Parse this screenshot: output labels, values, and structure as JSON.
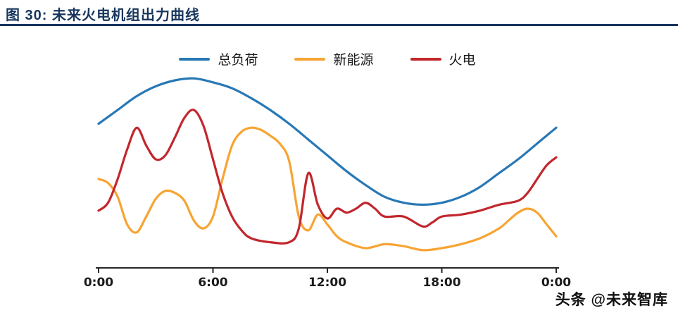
{
  "page": {
    "title": "图 30:  未来火电机组出力曲线",
    "footer": "头条 @未来智库",
    "title_color": "#17365d",
    "axis_color": "#262626"
  },
  "chart_data": {
    "type": "line",
    "title": "未来火电机组出力曲线",
    "xlabel": "",
    "ylabel": "",
    "x_range": [
      0,
      24
    ],
    "ylim": [
      0,
      100
    ],
    "grid": false,
    "legend_position": "top-center",
    "x_ticks": [
      {
        "pos": 0,
        "label": "0:00"
      },
      {
        "pos": 6,
        "label": "6:00"
      },
      {
        "pos": 12,
        "label": "12:00"
      },
      {
        "pos": 18,
        "label": "18:00"
      },
      {
        "pos": 24,
        "label": "0:00"
      }
    ],
    "series": [
      {
        "name": "总负荷",
        "color": "#2878b5",
        "x": [
          0,
          1,
          2,
          3,
          4,
          5,
          6,
          7,
          8,
          9,
          10,
          11,
          12,
          13,
          14,
          15,
          16,
          17,
          18,
          19,
          20,
          21,
          22,
          23,
          24
        ],
        "values": [
          73,
          80,
          87,
          92,
          95,
          96,
          94,
          91,
          86,
          80,
          73,
          65,
          57,
          49,
          42,
          36,
          33,
          32,
          33,
          36,
          41,
          48,
          55,
          63,
          71
        ]
      },
      {
        "name": "新能源",
        "color": "#f7a433",
        "x": [
          0,
          0.5,
          1,
          1.5,
          2,
          2.5,
          3,
          3.5,
          4,
          4.5,
          5,
          5.5,
          6,
          6.5,
          7,
          7.5,
          8,
          8.5,
          9,
          9.5,
          10,
          10.5,
          11,
          11.5,
          12,
          12.5,
          13,
          14,
          15,
          16,
          17,
          18,
          19,
          20,
          21,
          21.5,
          22,
          22.5,
          23,
          23.5,
          24
        ],
        "values": [
          45,
          43,
          36,
          22,
          18,
          26,
          35,
          39,
          38,
          34,
          24,
          20,
          26,
          45,
          62,
          69,
          71,
          70,
          67,
          63,
          54,
          26,
          19,
          27,
          22,
          16,
          13,
          10,
          12,
          11,
          9,
          10,
          12,
          15,
          20,
          24,
          28,
          30,
          28,
          22,
          16
        ]
      },
      {
        "name": "火电",
        "color": "#c1272d",
        "x": [
          0,
          0.5,
          1,
          1.5,
          2,
          2.5,
          3,
          3.5,
          4,
          4.5,
          5,
          5.5,
          6,
          6.5,
          7,
          7.5,
          8,
          9,
          10,
          10.5,
          11,
          11.5,
          12,
          12.5,
          13,
          13.5,
          14,
          14.5,
          15,
          16,
          17,
          17.5,
          18,
          19,
          20,
          21,
          22,
          22.5,
          23,
          23.5,
          24
        ],
        "values": [
          29,
          33,
          45,
          60,
          71,
          62,
          55,
          57,
          66,
          76,
          80,
          72,
          55,
          38,
          26,
          19,
          15,
          13,
          13,
          20,
          48,
          32,
          25,
          30,
          28,
          30,
          33,
          30,
          26,
          26,
          21,
          23,
          26,
          27,
          29,
          32,
          34,
          38,
          45,
          52,
          56
        ]
      }
    ]
  }
}
